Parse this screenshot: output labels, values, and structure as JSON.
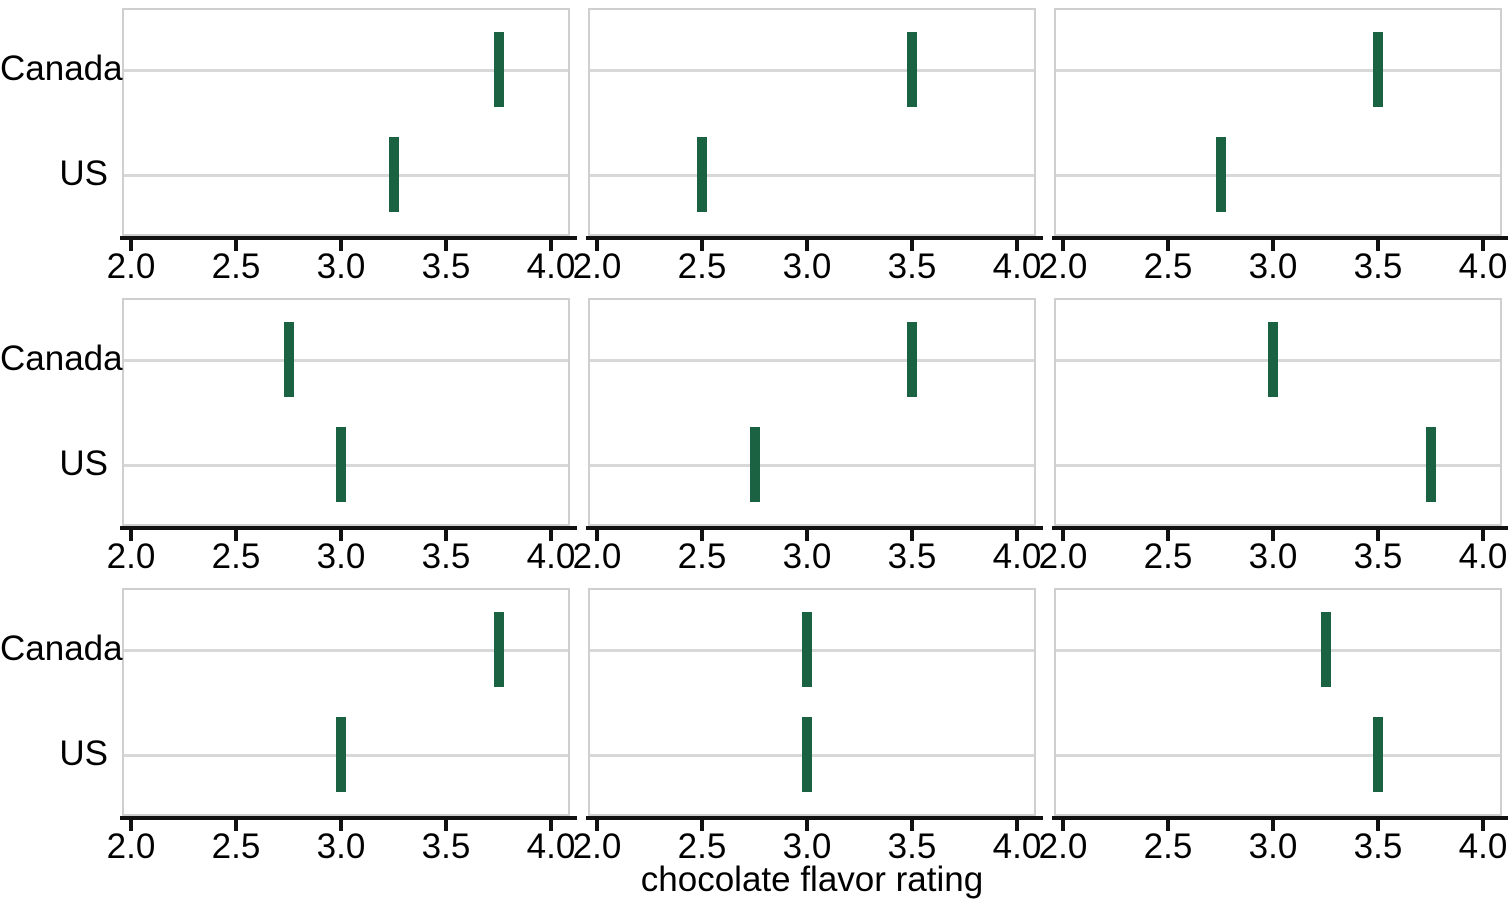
{
  "chart_data": {
    "type": "scatter",
    "marker": "vertical-interval-tick",
    "title": "",
    "xlabel": "chocolate flavor rating",
    "ylabel": "",
    "categories": [
      "Canada",
      "US"
    ],
    "x_ticks": [
      2.0,
      2.5,
      3.0,
      3.5,
      4.0
    ],
    "x_tick_labels": [
      "2.0",
      "2.5",
      "3.0",
      "3.5",
      "4.0"
    ],
    "xlim": [
      1.96,
      4.09
    ],
    "grid": "horizontal category gridlines on, no vertical gridlines",
    "legend": "none",
    "facets": {
      "rows": 3,
      "cols": 3,
      "strip_labels": "none visible",
      "panels": [
        {
          "row": 1,
          "col": 1,
          "values": {
            "Canada": 3.75,
            "US": 3.25
          }
        },
        {
          "row": 1,
          "col": 2,
          "values": {
            "Canada": 3.5,
            "US": 2.5
          }
        },
        {
          "row": 1,
          "col": 3,
          "values": {
            "Canada": 3.5,
            "US": 2.75
          }
        },
        {
          "row": 2,
          "col": 1,
          "values": {
            "Canada": 2.75,
            "US": 3.0
          }
        },
        {
          "row": 2,
          "col": 2,
          "values": {
            "Canada": 3.5,
            "US": 2.75
          }
        },
        {
          "row": 2,
          "col": 3,
          "values": {
            "Canada": 3.0,
            "US": 3.75
          }
        },
        {
          "row": 3,
          "col": 1,
          "values": {
            "Canada": 3.75,
            "US": 3.0
          }
        },
        {
          "row": 3,
          "col": 2,
          "values": {
            "Canada": 3.0,
            "US": 3.0
          }
        },
        {
          "row": 3,
          "col": 3,
          "values": {
            "Canada": 3.25,
            "US": 3.5
          }
        }
      ]
    },
    "colors": {
      "mark": "#1b6242",
      "gridline": "#d8d8d8",
      "panel_border": "#cfcfcf",
      "axis": "#111111",
      "text": "#000000",
      "background": "#ffffff"
    }
  }
}
